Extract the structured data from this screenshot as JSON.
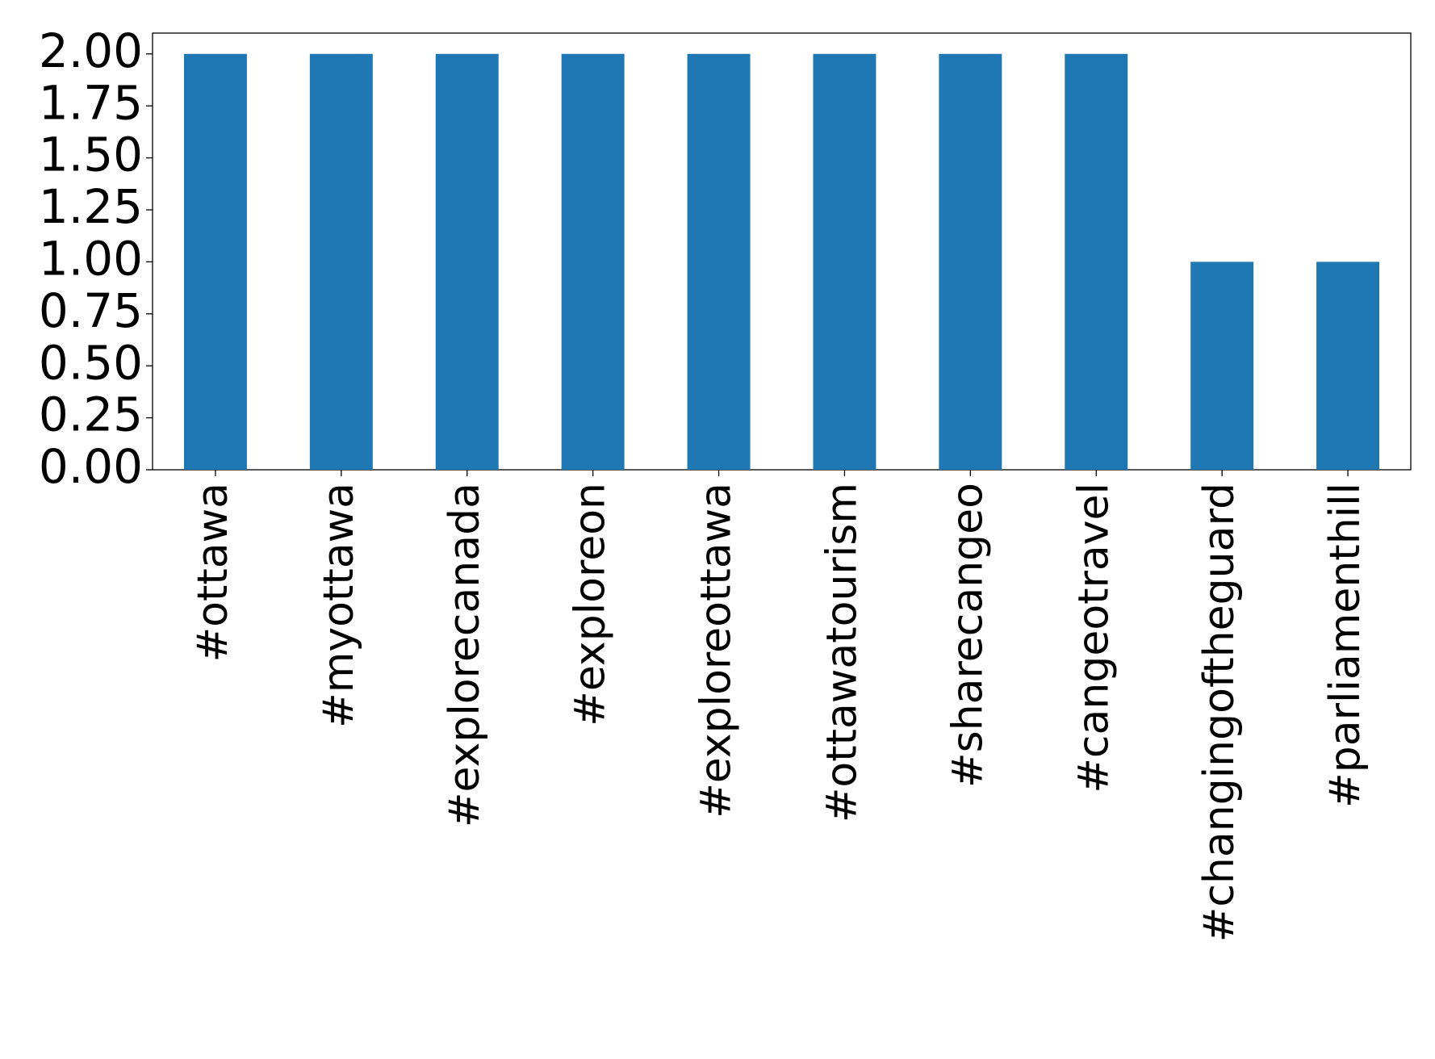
{
  "chart_data": {
    "type": "bar",
    "categories": [
      "#ottawa",
      "#myottawa",
      "#explorecanada",
      "#exploreon",
      "#exploreottawa",
      "#ottawatourism",
      "#sharecangeo",
      "#cangeotravel",
      "#changingoftheguard",
      "#parliamenthill"
    ],
    "values": [
      2,
      2,
      2,
      2,
      2,
      2,
      2,
      2,
      1,
      1
    ],
    "color": "#1f77b4",
    "ylim": [
      0,
      2.1
    ],
    "yticks": [
      {
        "value": 0,
        "label": "0.00"
      },
      {
        "value": 0.25,
        "label": "0.25"
      },
      {
        "value": 0.5,
        "label": "0.50"
      },
      {
        "value": 0.75,
        "label": "0.75"
      },
      {
        "value": 1,
        "label": "1.00"
      },
      {
        "value": 1.25,
        "label": "1.25"
      },
      {
        "value": 1.5,
        "label": "1.50"
      },
      {
        "value": 1.75,
        "label": "1.75"
      },
      {
        "value": 2,
        "label": "2.00"
      }
    ],
    "grid": false
  }
}
